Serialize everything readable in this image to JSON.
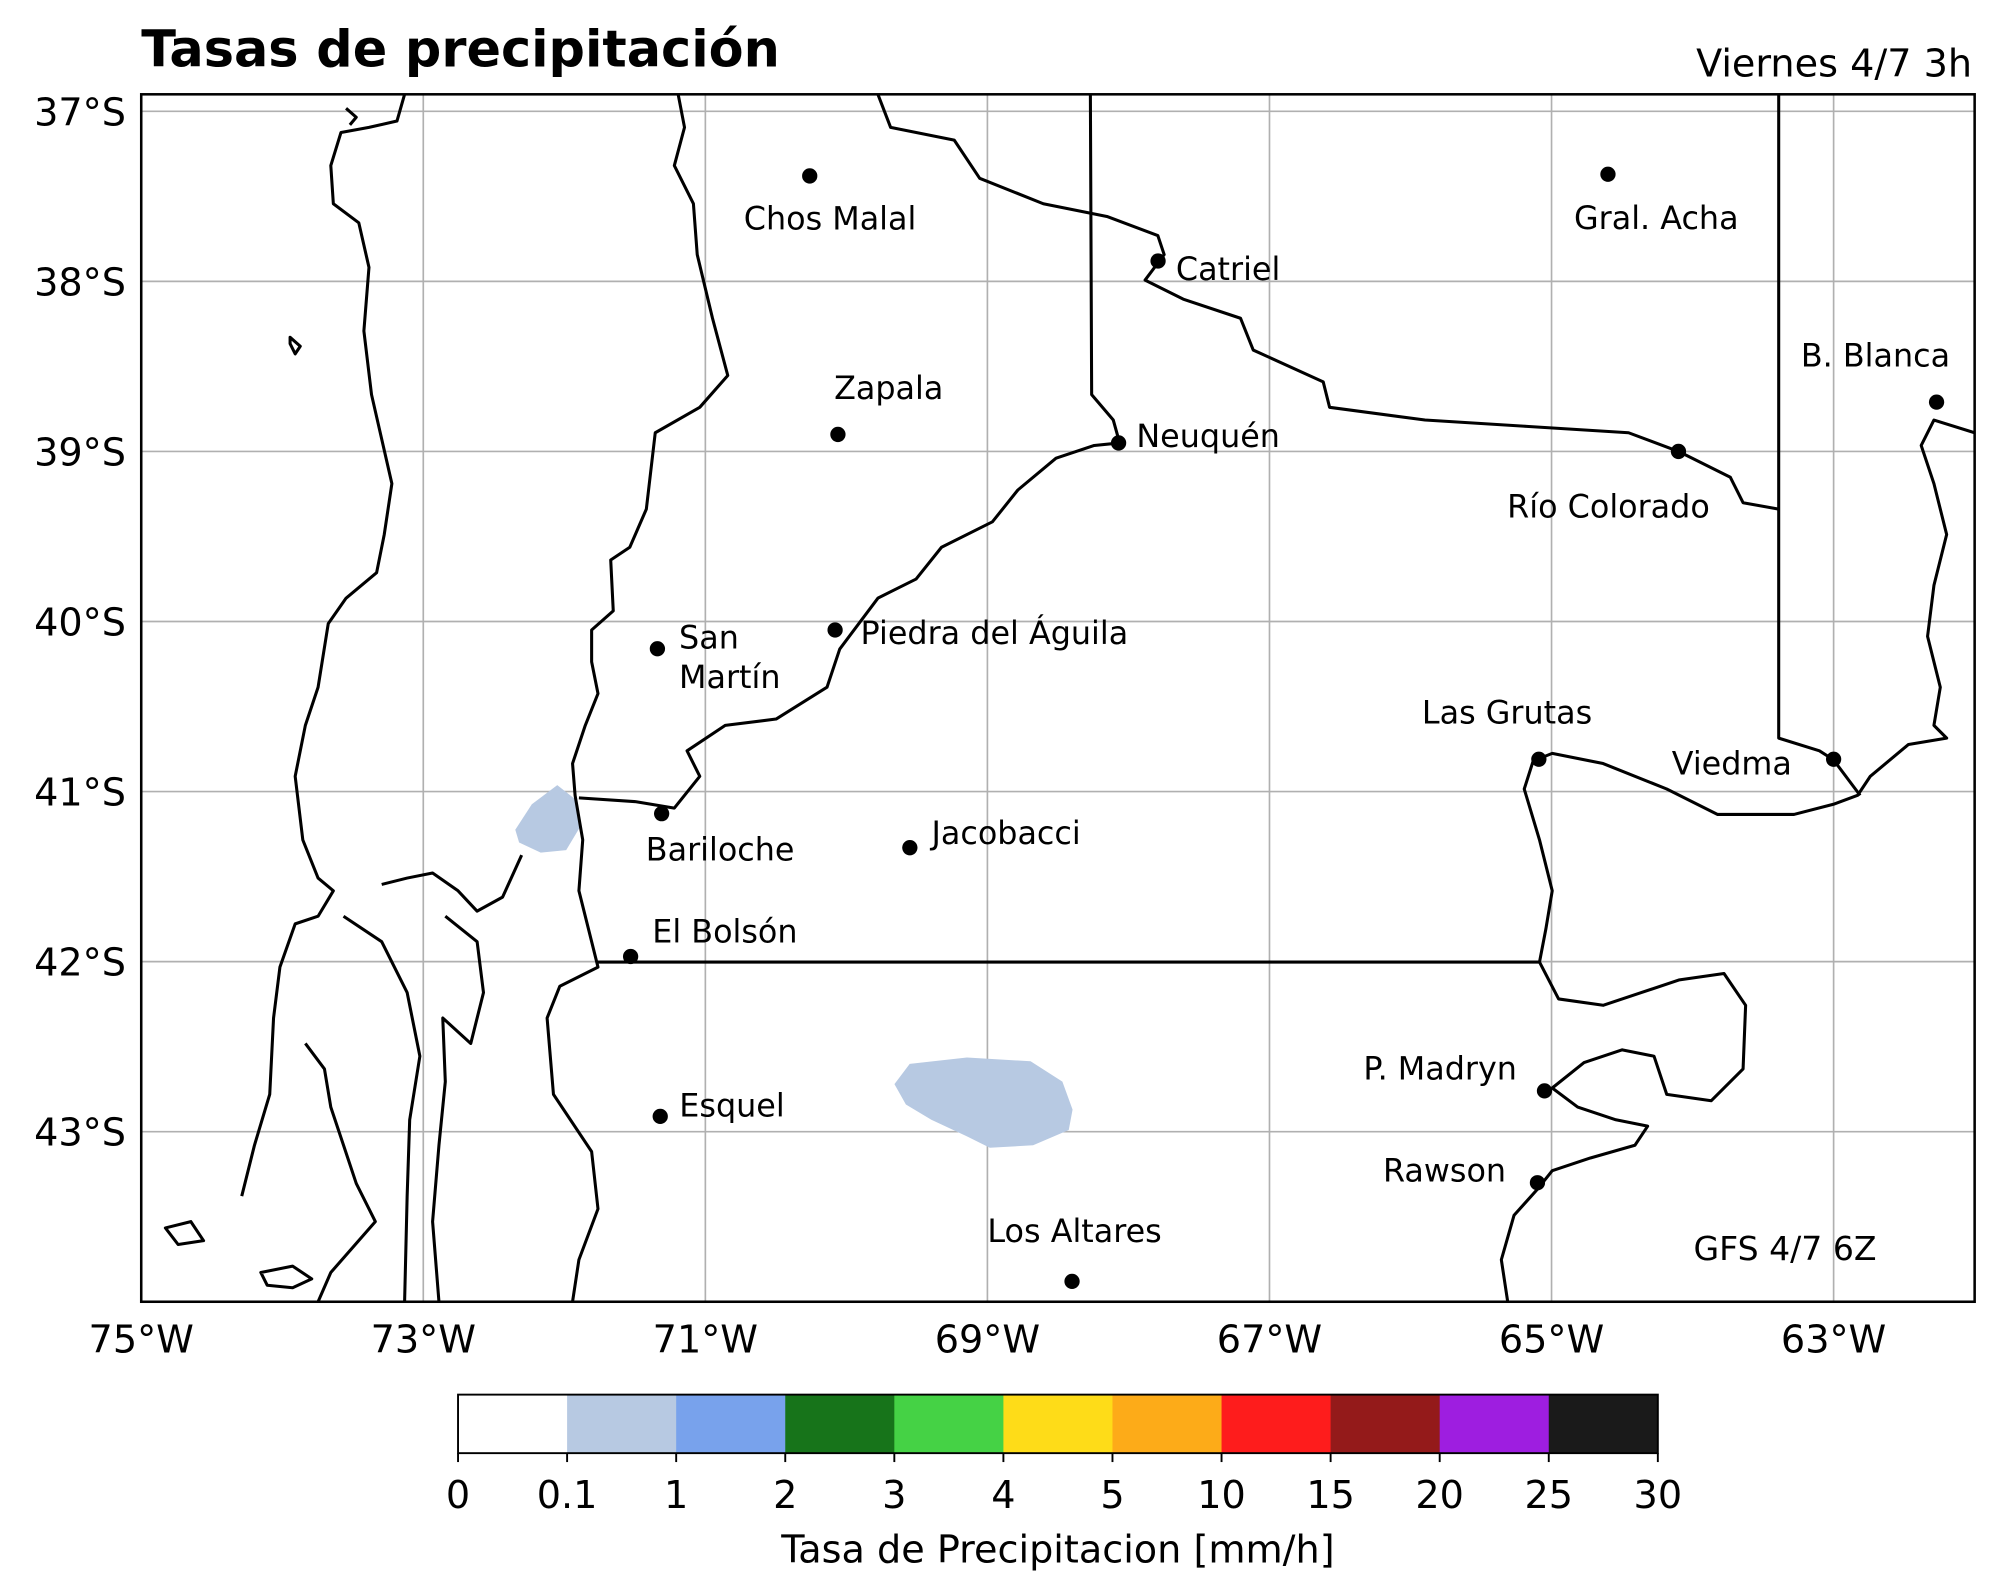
{
  "title": "Tasas de precipitación",
  "subtitle": "Viernes 4/7 3h",
  "model_note": "GFS 4/7 6Z",
  "map": {
    "xlim": [
      -75,
      -62
    ],
    "ylim": [
      -44,
      -36.9
    ],
    "grid": true,
    "xticks": [
      {
        "value": -75,
        "label": "75°W"
      },
      {
        "value": -73,
        "label": "73°W"
      },
      {
        "value": -71,
        "label": "71°W"
      },
      {
        "value": -69,
        "label": "69°W"
      },
      {
        "value": -67,
        "label": "67°W"
      },
      {
        "value": -65,
        "label": "65°W"
      },
      {
        "value": -63,
        "label": "63°W"
      }
    ],
    "yticks": [
      {
        "value": -37,
        "label": "37°S"
      },
      {
        "value": -38,
        "label": "38°S"
      },
      {
        "value": -39,
        "label": "39°S"
      },
      {
        "value": -40,
        "label": "40°S"
      },
      {
        "value": -41,
        "label": "41°S"
      },
      {
        "value": -42,
        "label": "42°S"
      },
      {
        "value": -43,
        "label": "43°S"
      }
    ],
    "cities": [
      {
        "name": "Chos Malal",
        "lon": -70.26,
        "lat": -37.38
      },
      {
        "name": "Gral. Acha",
        "lon": -64.6,
        "lat": -37.37
      },
      {
        "name": "Catriel",
        "lon": -67.79,
        "lat": -37.88
      },
      {
        "name": "B. Blanca",
        "lon": -62.27,
        "lat": -38.71
      },
      {
        "name": "Zapala",
        "lon": -70.06,
        "lat": -38.9
      },
      {
        "name": "Neuquén",
        "lon": -68.07,
        "lat": -38.95
      },
      {
        "name": "Río Colorado",
        "lon": -64.1,
        "lat": -39.0
      },
      {
        "name": "San Martín",
        "lon": -71.34,
        "lat": -40.16
      },
      {
        "name": "Piedra del Águila",
        "lon": -70.08,
        "lat": -40.05
      },
      {
        "name": "Las Grutas",
        "lon": -65.09,
        "lat": -40.81
      },
      {
        "name": "Viedma",
        "lon": -63.0,
        "lat": -40.81
      },
      {
        "name": "Bariloche",
        "lon": -71.31,
        "lat": -41.13
      },
      {
        "name": "Jacobacci",
        "lon": -69.55,
        "lat": -41.33
      },
      {
        "name": "El Bolsón",
        "lon": -71.53,
        "lat": -41.97
      },
      {
        "name": "P. Madryn",
        "lon": -65.05,
        "lat": -42.76
      },
      {
        "name": "Esquel",
        "lon": -71.32,
        "lat": -42.91
      },
      {
        "name": "Rawson",
        "lon": -65.1,
        "lat": -43.3
      },
      {
        "name": "Los Altares",
        "lon": -68.4,
        "lat": -43.88
      }
    ]
  },
  "colorbar": {
    "label": "Tasa de Precipitacion [mm/h]",
    "bounds": [
      0,
      0.1,
      1,
      2,
      3,
      4,
      5,
      10,
      15,
      20,
      25,
      30
    ],
    "colors": [
      "#ffffff",
      "#b7c9e2",
      "#78a2ec",
      "#17741a",
      "#45d245",
      "#fedc18",
      "#fdab18",
      "#fe1c1c",
      "#941a1a",
      "#9e1ee0",
      "#1a1a1a"
    ]
  }
}
